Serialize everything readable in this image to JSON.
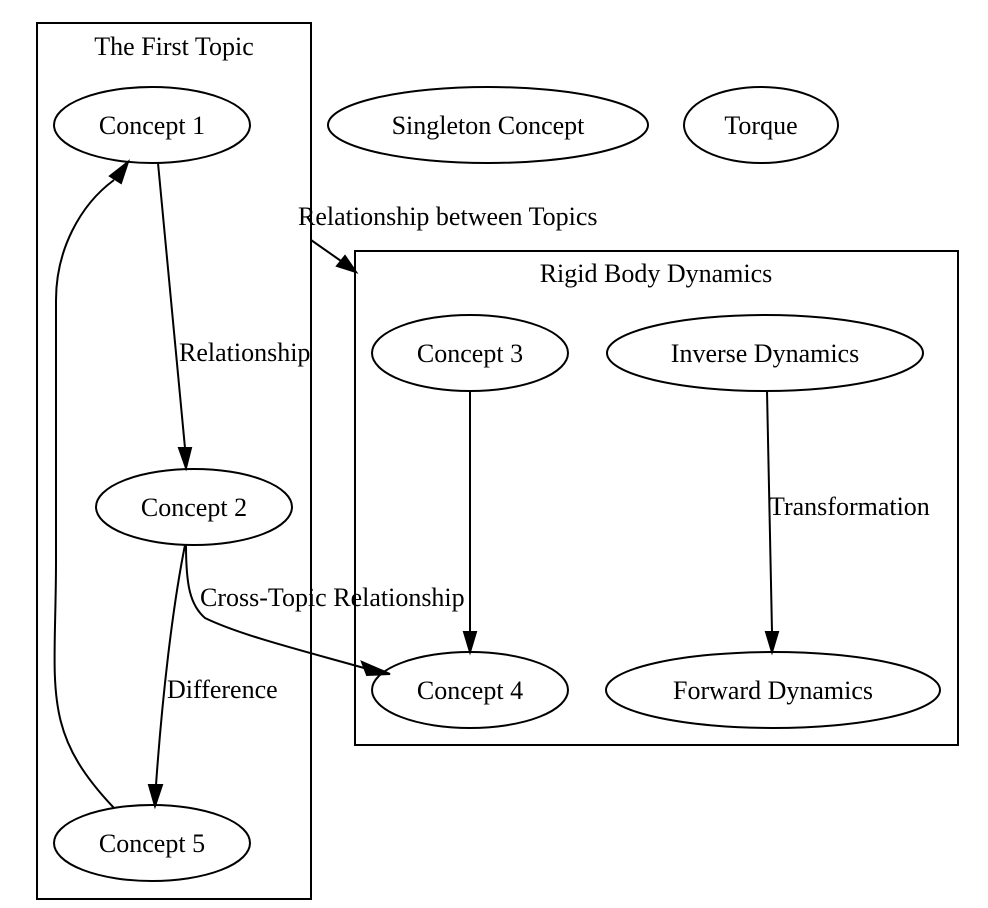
{
  "clusters": {
    "first_topic": {
      "label": "The First Topic"
    },
    "rigid_body_dynamics": {
      "label": "Rigid Body Dynamics"
    }
  },
  "nodes": {
    "concept_1": "Concept 1",
    "concept_2": "Concept 2",
    "concept_3": "Concept 3",
    "concept_4": "Concept 4",
    "concept_5": "Concept 5",
    "singleton_concept": "Singleton Concept",
    "torque": "Torque",
    "inverse_dynamics": "Inverse Dynamics",
    "forward_dynamics": "Forward Dynamics"
  },
  "edges": {
    "concept1_to_concept2": "Relationship",
    "topic_to_topic": "Relationship between Topics",
    "concept2_to_concept4": "Cross-Topic Relationship",
    "concept2_to_concept5": "Difference",
    "concept3_to_concept4": "",
    "concept5_to_concept1": "",
    "inverse_to_forward": "Transformation"
  }
}
